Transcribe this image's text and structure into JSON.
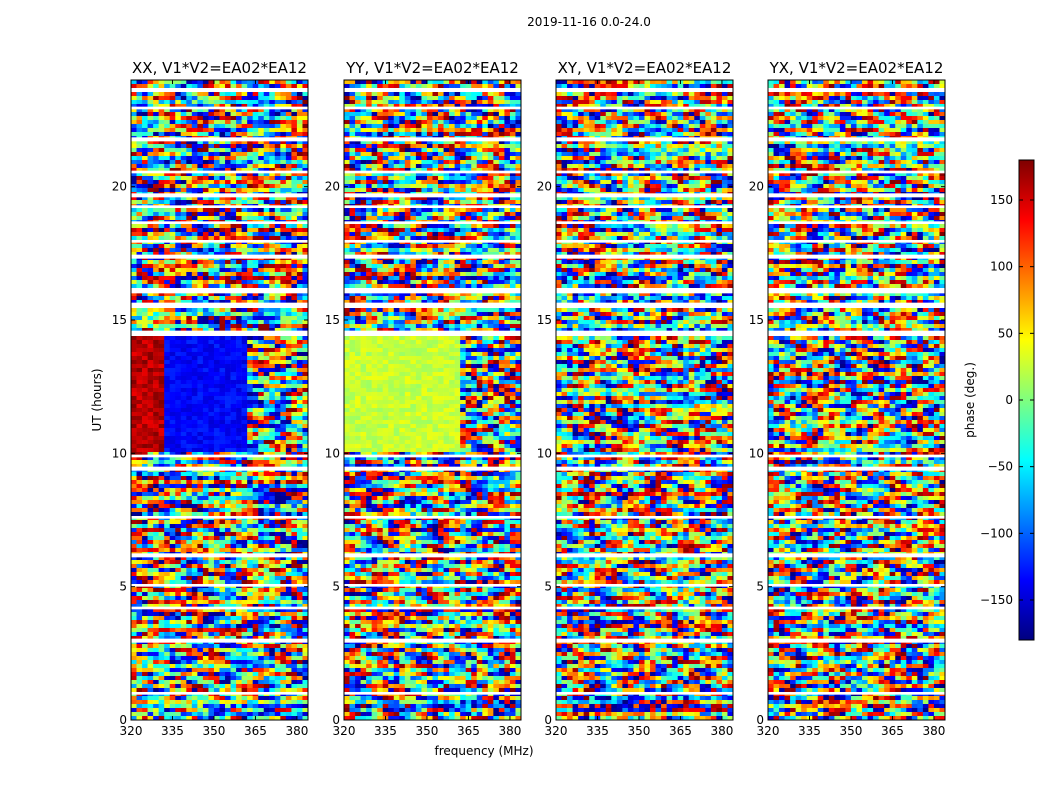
{
  "title": "2019-11-16 0.0-24.0",
  "xlabel": "frequency (MHz)",
  "ylabel": "UT (hours)",
  "colorbar": {
    "label": "phase (deg.)",
    "range": [
      -180,
      180
    ],
    "ticks": [
      "150",
      "100",
      "50",
      "0",
      "−50",
      "−100",
      "−150"
    ],
    "tick_values": [
      150,
      100,
      50,
      0,
      -50,
      -100,
      -150
    ],
    "colormap": [
      "#00007f",
      "#0000ff",
      "#007fff",
      "#00ffff",
      "#7fff7f",
      "#ffff00",
      "#ff7f00",
      "#ff0000",
      "#7f0000"
    ]
  },
  "chart_data": [
    {
      "type": "heatmap",
      "title": "XX, V1*V2=EA02*EA12",
      "x_ticks": [
        "320",
        "335",
        "350",
        "365",
        "380"
      ],
      "x_tick_values": [
        320,
        335,
        350,
        365,
        380
      ],
      "xlim": [
        320,
        384
      ],
      "y_ticks": [
        "0",
        "5",
        "10",
        "15",
        "20"
      ],
      "y_tick_values": [
        0,
        5,
        10,
        15,
        20
      ],
      "ylim": [
        0,
        24
      ],
      "zlim": [
        -180,
        180
      ]
    },
    {
      "type": "heatmap",
      "title": "YY, V1*V2=EA02*EA12",
      "x_ticks": [
        "320",
        "335",
        "350",
        "365",
        "380"
      ],
      "x_tick_values": [
        320,
        335,
        350,
        365,
        380
      ],
      "xlim": [
        320,
        384
      ],
      "y_ticks": [
        "0",
        "5",
        "10",
        "15",
        "20"
      ],
      "y_tick_values": [
        0,
        5,
        10,
        15,
        20
      ],
      "ylim": [
        0,
        24
      ],
      "zlim": [
        -180,
        180
      ]
    },
    {
      "type": "heatmap",
      "title": "XY, V1*V2=EA02*EA12",
      "x_ticks": [
        "320",
        "335",
        "350",
        "365",
        "380"
      ],
      "x_tick_values": [
        320,
        335,
        350,
        365,
        380
      ],
      "xlim": [
        320,
        384
      ],
      "y_ticks": [
        "0",
        "5",
        "10",
        "15",
        "20"
      ],
      "y_tick_values": [
        0,
        5,
        10,
        15,
        20
      ],
      "ylim": [
        0,
        24
      ],
      "zlim": [
        -180,
        180
      ]
    },
    {
      "type": "heatmap",
      "title": "YX, V1*V2=EA02*EA12",
      "x_ticks": [
        "320",
        "335",
        "350",
        "365",
        "380"
      ],
      "x_tick_values": [
        320,
        335,
        350,
        365,
        380
      ],
      "xlim": [
        320,
        384
      ],
      "y_ticks": [
        "0",
        "5",
        "10",
        "15",
        "20"
      ],
      "y_tick_values": [
        0,
        5,
        10,
        15,
        20
      ],
      "ylim": [
        0,
        24
      ],
      "zlim": [
        -180,
        180
      ]
    }
  ]
}
